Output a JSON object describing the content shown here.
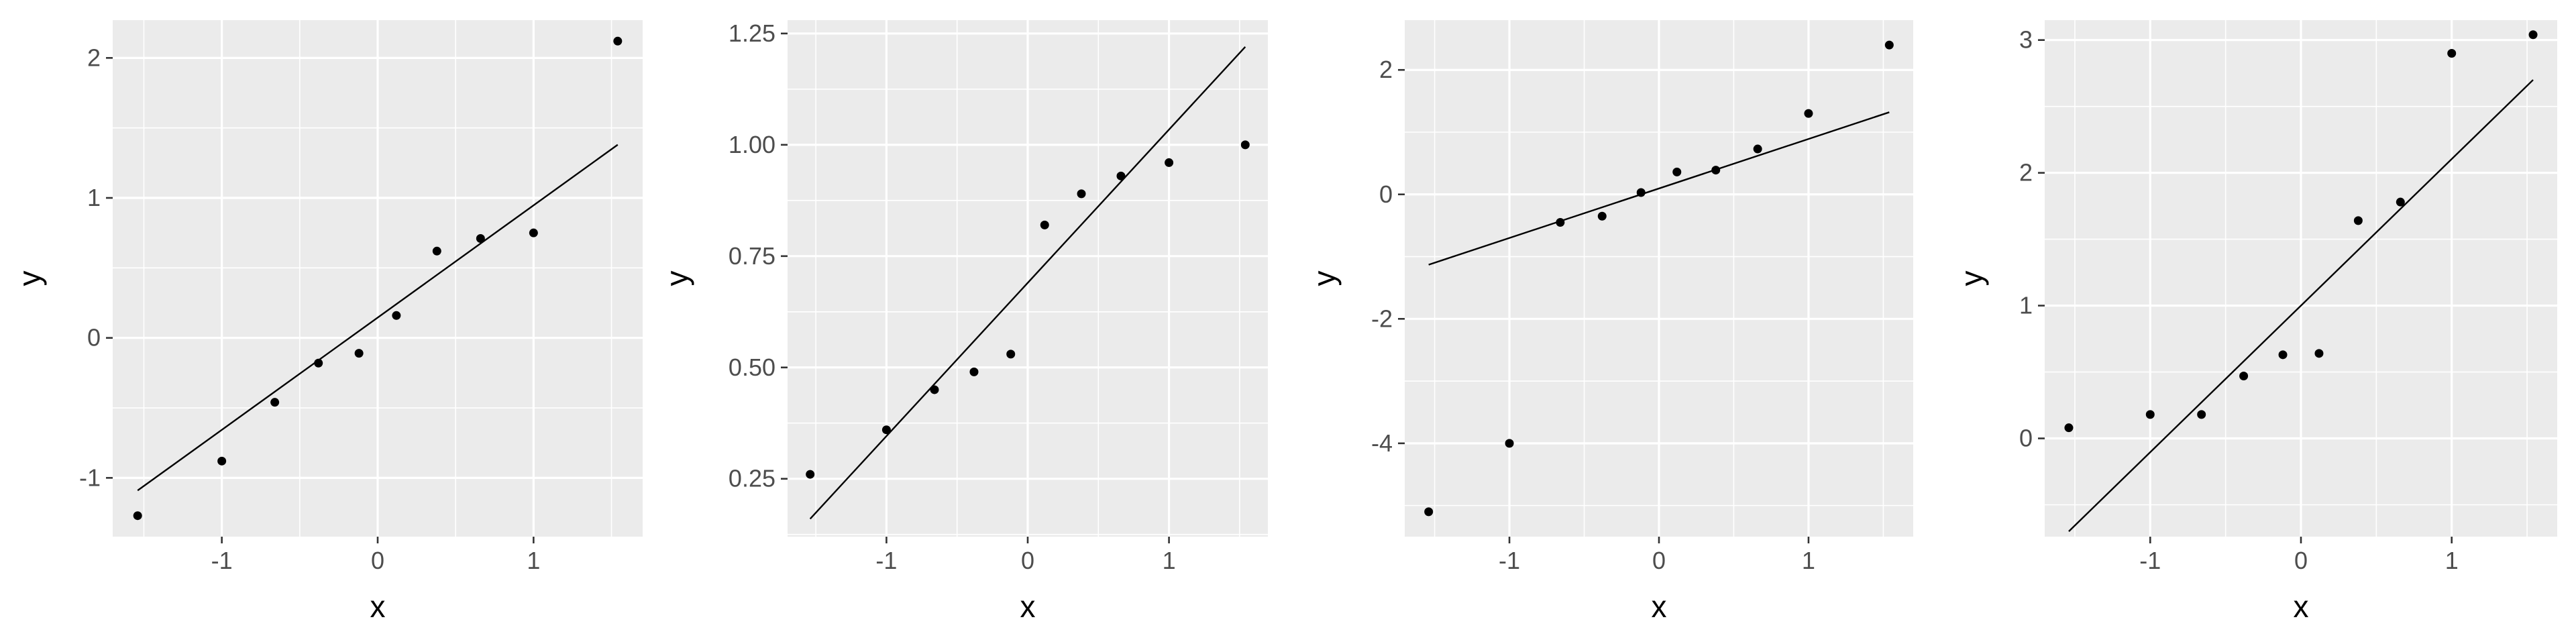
{
  "chart_data": [
    {
      "type": "scatter",
      "xlabel": "x",
      "ylabel": "y",
      "xlim": [
        -1.7,
        1.7
      ],
      "ylim": [
        -1.42,
        2.27
      ],
      "x_ticks": [
        -1,
        0,
        1
      ],
      "x_tick_labels": [
        "-1",
        "0",
        "1"
      ],
      "y_ticks": [
        -1,
        0,
        1,
        2
      ],
      "y_tick_labels": [
        "-1",
        "0",
        "1",
        "2"
      ],
      "grid": true,
      "points": {
        "x": [
          -1.54,
          -1.0,
          -0.66,
          -0.38,
          -0.12,
          0.12,
          0.38,
          0.66,
          1.0,
          1.54
        ],
        "y": [
          -1.27,
          -0.88,
          -0.46,
          -0.18,
          -0.11,
          0.16,
          0.62,
          0.71,
          0.75,
          2.12
        ]
      },
      "line": {
        "x": [
          -1.54,
          1.54
        ],
        "y": [
          -1.09,
          1.38
        ]
      }
    },
    {
      "type": "scatter",
      "xlabel": "x",
      "ylabel": "y",
      "xlim": [
        -1.7,
        1.7
      ],
      "ylim": [
        0.12,
        1.28
      ],
      "x_ticks": [
        -1,
        0,
        1
      ],
      "x_tick_labels": [
        "-1",
        "0",
        "1"
      ],
      "y_ticks": [
        0.25,
        0.5,
        0.75,
        1.0,
        1.25
      ],
      "y_tick_labels": [
        "0.25",
        "0.50",
        "0.75",
        "1.00",
        "1.25"
      ],
      "grid": true,
      "points": {
        "x": [
          -1.54,
          -1.0,
          -0.66,
          -0.38,
          -0.12,
          0.12,
          0.38,
          0.66,
          1.0,
          1.54
        ],
        "y": [
          0.26,
          0.36,
          0.45,
          0.49,
          0.53,
          0.82,
          0.89,
          0.93,
          0.96,
          1.0
        ]
      },
      "line": {
        "x": [
          -1.54,
          1.54
        ],
        "y": [
          0.16,
          1.22
        ]
      }
    },
    {
      "type": "scatter",
      "xlabel": "x",
      "ylabel": "y",
      "xlim": [
        -1.7,
        1.7
      ],
      "ylim": [
        -5.5,
        2.8
      ],
      "x_ticks": [
        -1,
        0,
        1
      ],
      "x_tick_labels": [
        "-1",
        "0",
        "1"
      ],
      "y_ticks": [
        -4,
        -2,
        0,
        2
      ],
      "y_tick_labels": [
        "-4",
        "-2",
        "0",
        "2"
      ],
      "grid": true,
      "points": {
        "x": [
          -1.54,
          -1.0,
          -0.66,
          -0.38,
          -0.12,
          0.12,
          0.38,
          0.66,
          1.0,
          1.54
        ],
        "y": [
          -5.1,
          -4.0,
          -0.45,
          -0.35,
          0.03,
          0.36,
          0.39,
          0.73,
          1.3,
          2.4
        ]
      },
      "line": {
        "x": [
          -1.54,
          1.54
        ],
        "y": [
          -1.13,
          1.32
        ]
      }
    },
    {
      "type": "scatter",
      "xlabel": "x",
      "ylabel": "y",
      "xlim": [
        -1.7,
        1.7
      ],
      "ylim": [
        -0.74,
        3.15
      ],
      "x_ticks": [
        -1,
        0,
        1
      ],
      "x_tick_labels": [
        "-1",
        "0",
        "1"
      ],
      "y_ticks": [
        0,
        1,
        2,
        3
      ],
      "y_tick_labels": [
        "0",
        "1",
        "2",
        "3"
      ],
      "grid": true,
      "points": {
        "x": [
          -1.54,
          -1.0,
          -0.66,
          -0.38,
          -0.12,
          0.12,
          0.38,
          0.66,
          1.0,
          1.54
        ],
        "y": [
          0.08,
          0.18,
          0.18,
          0.47,
          0.63,
          0.64,
          1.64,
          1.78,
          2.9,
          3.04
        ]
      },
      "line": {
        "x": [
          -1.54,
          1.54
        ],
        "y": [
          -0.7,
          2.7
        ]
      }
    }
  ]
}
